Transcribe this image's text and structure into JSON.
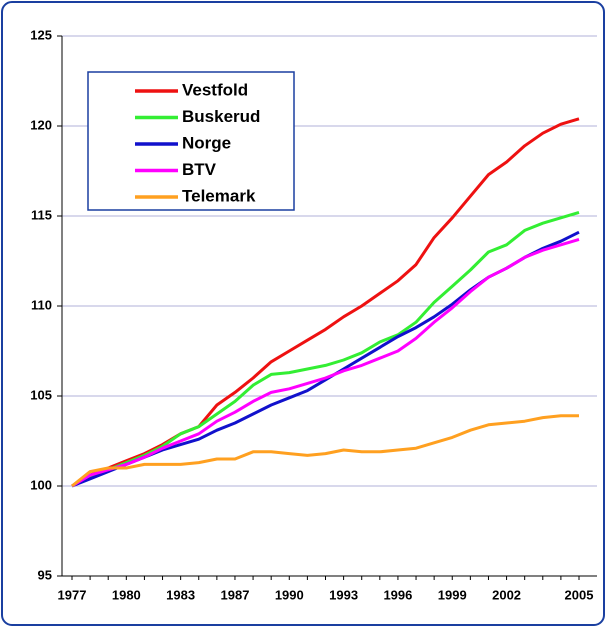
{
  "chart_data": {
    "type": "line",
    "categories": [
      "1977",
      null,
      null,
      "1980",
      null,
      null,
      "1983",
      null,
      null,
      "1987",
      null,
      null,
      "1990",
      null,
      null,
      "1993",
      null,
      null,
      "1996",
      null,
      null,
      "1999",
      null,
      null,
      "2002",
      null,
      null,
      null,
      "2005"
    ],
    "series": [
      {
        "name": "Vestfold",
        "color": "#ee1111",
        "values": [
          100,
          100.6,
          101,
          101.4,
          101.8,
          102.3,
          102.9,
          103.3,
          104.5,
          105.2,
          106,
          106.9,
          107.5,
          108.1,
          108.7,
          109.4,
          110,
          110.7,
          111.4,
          112.3,
          113.8,
          114.9,
          116.1,
          117.3,
          118,
          118.9,
          119.6,
          120.1,
          120.4
        ]
      },
      {
        "name": "Buskerud",
        "color": "#33ee33",
        "values": [
          100,
          100.5,
          100.9,
          101.3,
          101.7,
          102.2,
          102.9,
          103.3,
          104,
          104.7,
          105.6,
          106.2,
          106.3,
          106.5,
          106.7,
          107,
          107.4,
          108,
          108.4,
          109.1,
          110.2,
          111.1,
          112,
          113,
          113.4,
          114.2,
          114.6,
          114.9,
          115.2
        ]
      },
      {
        "name": "Norge",
        "color": "#1111cc",
        "values": [
          100,
          100.4,
          100.8,
          101.2,
          101.6,
          102,
          102.3,
          102.6,
          103.1,
          103.5,
          104,
          104.5,
          104.9,
          105.3,
          105.9,
          106.5,
          107.1,
          107.7,
          108.3,
          108.8,
          109.4,
          110.1,
          110.9,
          111.6,
          112.1,
          112.7,
          113.2,
          113.6,
          114.1
        ]
      },
      {
        "name": "BTV",
        "color": "#ff00ff",
        "values": [
          100,
          100.6,
          100.9,
          101.2,
          101.6,
          102.1,
          102.5,
          102.9,
          103.6,
          104.1,
          104.7,
          105.2,
          105.4,
          105.7,
          106,
          106.4,
          106.7,
          107.1,
          107.5,
          108.2,
          109.1,
          109.9,
          110.8,
          111.6,
          112.1,
          112.7,
          113.1,
          113.4,
          113.7
        ]
      },
      {
        "name": "Telemark",
        "color": "#ffa020",
        "values": [
          100,
          100.8,
          101,
          101,
          101.2,
          101.2,
          101.2,
          101.3,
          101.5,
          101.5,
          101.9,
          101.9,
          101.8,
          101.7,
          101.8,
          102,
          101.9,
          101.9,
          102,
          102.1,
          102.4,
          102.7,
          103.1,
          103.4,
          103.5,
          103.6,
          103.8,
          103.9,
          103.9
        ]
      }
    ],
    "ylim": [
      95,
      125
    ],
    "yticks": [
      95,
      100,
      105,
      110,
      115,
      120,
      125
    ],
    "grid": true
  }
}
